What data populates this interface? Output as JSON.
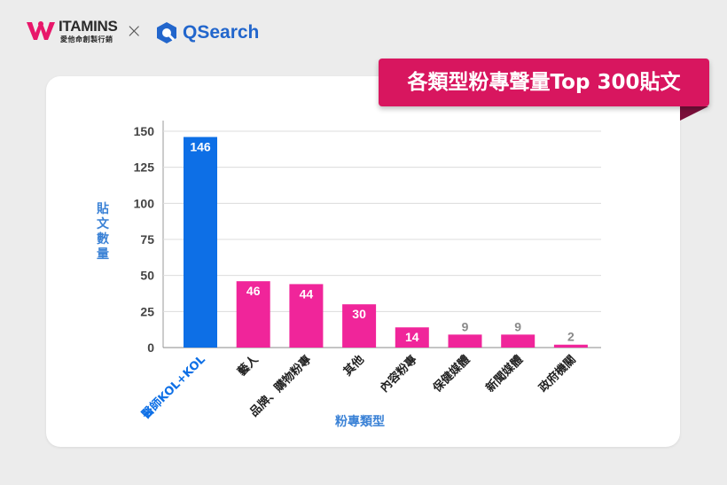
{
  "header": {
    "brand_left": "ITAMINS",
    "brand_left_sub": "愛他命創製行銷",
    "separator": "×",
    "brand_right": "QSearch"
  },
  "banner": {
    "title": "各類型粉專聲量Top 300貼文"
  },
  "colors": {
    "banner": "#d8165f",
    "highlight_bar": "#0d6fe6",
    "bar": "#f0259a",
    "axis_title": "#3b82d6",
    "low_value_label": "#8a8a8a"
  },
  "chart_data": {
    "type": "bar",
    "title": "各類型粉專聲量Top 300貼文",
    "xlabel": "粉專類型",
    "ylabel": "貼文數量",
    "categories": [
      "醫師KOL+KOL",
      "藝人",
      "品牌、購物粉專",
      "其他",
      "內容粉專",
      "保健媒體",
      "新聞媒體",
      "政府機關"
    ],
    "values": [
      146,
      46,
      44,
      30,
      14,
      9,
      9,
      2
    ],
    "value_labels": [
      "146",
      "46",
      "44",
      "30",
      "14",
      "9",
      "9",
      "2"
    ],
    "highlight_index": 0,
    "yticks": [
      0,
      25,
      50,
      75,
      100,
      125,
      150
    ],
    "ytick_labels": [
      "0",
      "25",
      "50",
      "75",
      "100",
      "125",
      "150"
    ],
    "ylim": [
      0,
      150
    ],
    "grid": true,
    "legend": "none"
  }
}
